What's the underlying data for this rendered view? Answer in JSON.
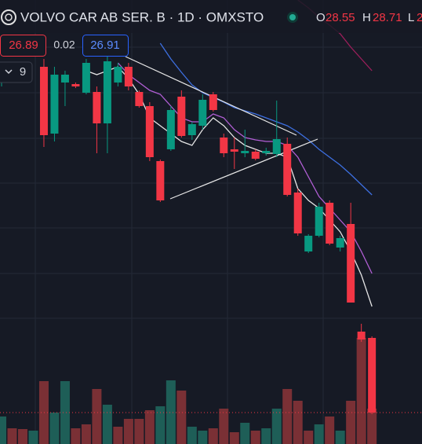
{
  "chart_data": {
    "type": "candlestick",
    "title": "VOLVO CAR AB SER. B · 1D · OMXSTO",
    "ohlc_labels": [
      {
        "key": "O",
        "value": "28.55"
      },
      {
        "key": "H",
        "value": "28.71"
      },
      {
        "key": "L",
        "value": "2"
      }
    ],
    "price_labels": [
      "26.89",
      "0.02",
      "26.91"
    ],
    "indicator_label": "9",
    "ylim": [
      19.7,
      31
    ],
    "volume_lim": [
      0,
      100
    ],
    "up_color": "#089981",
    "down_color": "#f23645",
    "open": [
      28.9,
      null,
      null,
      null,
      29.3,
      27.6,
      28.9,
      28.86,
      28.64,
      28.66,
      27.86,
      28.9,
      29.3,
      28.66,
      28.3,
      26.9,
      27.2,
      28.54,
      27.56,
      27.8,
      28.6,
      27.5,
      27.2,
      27.1,
      27.14,
      27.1,
      27.08,
      27.34,
      26.1,
      24.6,
      25,
      25.84,
      24.7,
      25.3,
      22.56,
      22.4
    ],
    "high": [
      29.2,
      null,
      null,
      null,
      29.5,
      29.3,
      29.2,
      28.9,
      29.5,
      28.8,
      29.6,
      29.4,
      29.4,
      28.7,
      28.4,
      26.94,
      28.3,
      28.7,
      27.9,
      28.6,
      28.66,
      27.6,
      27.5,
      27.7,
      27.2,
      27.24,
      28.44,
      27.5,
      26.2,
      25.04,
      25.84,
      25.9,
      25,
      25.84,
      22.76,
      22.44
    ],
    "low": [
      28.8,
      null,
      null,
      null,
      27.26,
      27.4,
      28.3,
      28.76,
      28.6,
      27.1,
      27.1,
      28.8,
      28.7,
      28.26,
      26.9,
      25.86,
      27.16,
      27.5,
      27.44,
      27.7,
      28.16,
      27,
      26.7,
      27,
      26.92,
      27.04,
      27,
      26,
      25,
      24.56,
      24.96,
      24.76,
      24.6,
      23.3,
      22.3,
      20.46
    ],
    "close": [
      29.1,
      null,
      null,
      null,
      27.56,
      29.1,
      29.1,
      28.8,
      29.4,
      27.86,
      29.44,
      29.3,
      28.8,
      28.3,
      27,
      25.9,
      28.2,
      27.54,
      27.84,
      28.46,
      28.2,
      27.1,
      27.14,
      27.16,
      26.96,
      27.16,
      27.46,
      26.04,
      25.06,
      25,
      25.74,
      24.8,
      24.94,
      23.3,
      22.36,
      20.5
    ],
    "volume": [
      17.5,
      10,
      9.5,
      8.5,
      40,
      20,
      40,
      10,
      12.5,
      35,
      25,
      11,
      16,
      16,
      21.5,
      24,
      40.5,
      34,
      11,
      8.5,
      10,
      22.5,
      7.5,
      13.5,
      8.5,
      10,
      22.5,
      35,
      27.5,
      8.5,
      12.5,
      17.5,
      8.5,
      27.5,
      67.5,
      22.5
    ],
    "volume_colors": [
      "#1e5e57",
      "#7a3035",
      "#7a3035",
      "#1e5e57",
      "#7a3035",
      "#1e5e57",
      "#1e5e57",
      "#7a3035",
      "#7a3035",
      "#7a3035",
      "#1e5e57",
      "#7a3035",
      "#7a3035",
      "#7a3035",
      "#7a3035",
      "#1e5e57",
      "#1e5e57",
      "#7a3035",
      "#1e5e57",
      "#1e5e57",
      "#7a3035",
      "#7a3035",
      "#7a3035",
      "#1e5e57",
      "#7a3035",
      "#1e5e57",
      "#1e5e57",
      "#7a3035",
      "#7a3035",
      "#7a3035",
      "#1e5e57",
      "#7a3035",
      "#1e5e57",
      "#7a3035",
      "#7a3035",
      "#7a3035"
    ],
    "ma_lines": [
      {
        "color": "#e6e6e6",
        "values": [
          null,
          null,
          null,
          null,
          null,
          null,
          null,
          null,
          29.2,
          29.1,
          29.2,
          29.3,
          29,
          28.6,
          28,
          27.8,
          27.6,
          27.4,
          27.3,
          27.7,
          28,
          27.8,
          27.5,
          27.3,
          27.2,
          27.1,
          27.1,
          27,
          26.2,
          25.9,
          25.7,
          25.4,
          25.1,
          24.6,
          24,
          23.2
        ]
      },
      {
        "color": "#b25fd6",
        "values": [
          null,
          null,
          null,
          null,
          null,
          null,
          null,
          null,
          null,
          null,
          null,
          29.4,
          29.1,
          28.9,
          28.7,
          28.6,
          28.3,
          28,
          27.9,
          27.9,
          28.1,
          28,
          27.7,
          27.5,
          27.44,
          27.4,
          27.4,
          27.3,
          27,
          26.5,
          26,
          25.7,
          25.4,
          25.1,
          24.6,
          24.04
        ]
      },
      {
        "color": "#3d6fe0",
        "values": [
          null,
          null,
          null,
          null,
          null,
          null,
          null,
          null,
          null,
          null,
          null,
          null,
          null,
          null,
          null,
          29.9,
          29.5,
          29.16,
          28.84,
          28.64,
          28.52,
          28.4,
          28.26,
          28.18,
          28.1,
          28,
          27.9,
          27.8,
          27.64,
          27.44,
          27.2,
          27,
          26.8,
          26.56,
          26.3,
          26.04
        ]
      },
      {
        "color": "#9c1f5b",
        "values": [
          null,
          null,
          null,
          null,
          null,
          null,
          null,
          null,
          null,
          null,
          null,
          null,
          null,
          null,
          null,
          null,
          null,
          null,
          null,
          null,
          null,
          null,
          null,
          null,
          null,
          null,
          null,
          null,
          31,
          30.8,
          30.56,
          30.36,
          30.14,
          29.8,
          29.5,
          29.2
        ]
      }
    ]
  }
}
